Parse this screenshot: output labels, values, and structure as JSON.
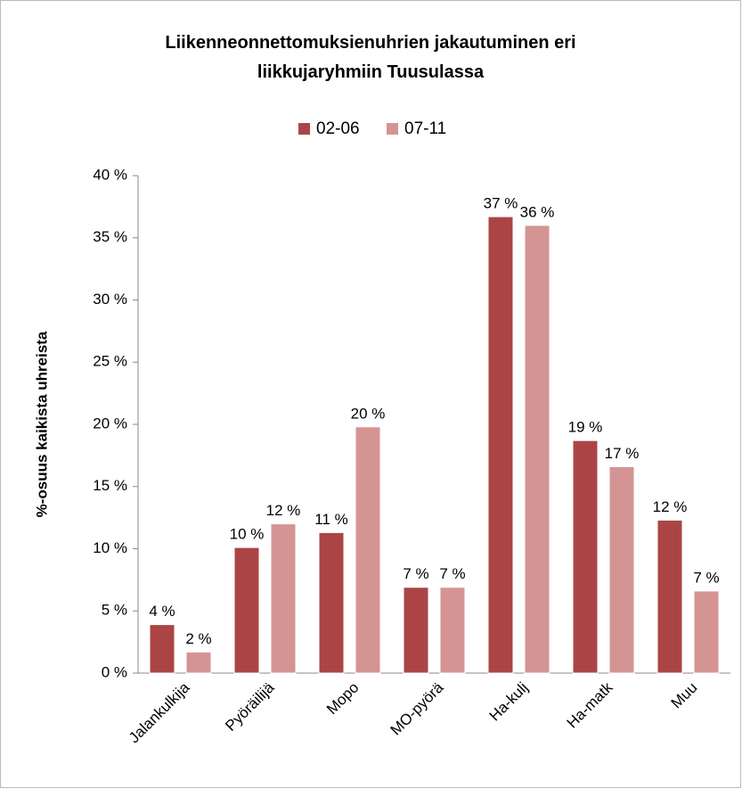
{
  "chart_data": {
    "type": "bar",
    "title": "Liikenneonnettomuksienuhrien jakautuminen eri liikkujaryhmiin Tuusulassa",
    "y_label": "%-osuus kaikista uhreista",
    "categories": [
      "Jalankulkija",
      "Pyöräilijä",
      "Mopo",
      "MO-pyörä",
      "Ha-kulj",
      "Ha-matk",
      "Muu"
    ],
    "series": [
      {
        "name": "02-06",
        "color": "#ab4545",
        "values": [
          3.9,
          10.1,
          11.3,
          6.9,
          36.7,
          18.7,
          12.3
        ],
        "value_labels": [
          "4 %",
          "10 %",
          "11 %",
          "7 %",
          "37 %",
          "19 %",
          "12 %"
        ]
      },
      {
        "name": "07-11",
        "color": "#d49494",
        "values": [
          1.7,
          12.0,
          19.8,
          6.9,
          36.0,
          16.6,
          6.6
        ],
        "value_labels": [
          "2 %",
          "12 %",
          "20 %",
          "7 %",
          "36 %",
          "17 %",
          "7 %"
        ]
      }
    ],
    "ylim": [
      0,
      40
    ],
    "yticks": [
      {
        "value": 0,
        "label": "0 %"
      },
      {
        "value": 5,
        "label": "5 %"
      },
      {
        "value": 10,
        "label": "10 %"
      },
      {
        "value": 15,
        "label": "15 %"
      },
      {
        "value": 20,
        "label": "20 %"
      },
      {
        "value": 25,
        "label": "25 %"
      },
      {
        "value": 30,
        "label": "30 %"
      },
      {
        "value": 35,
        "label": "35 %"
      },
      {
        "value": 40,
        "label": "40 %"
      }
    ],
    "legend": "top",
    "grid": false
  }
}
